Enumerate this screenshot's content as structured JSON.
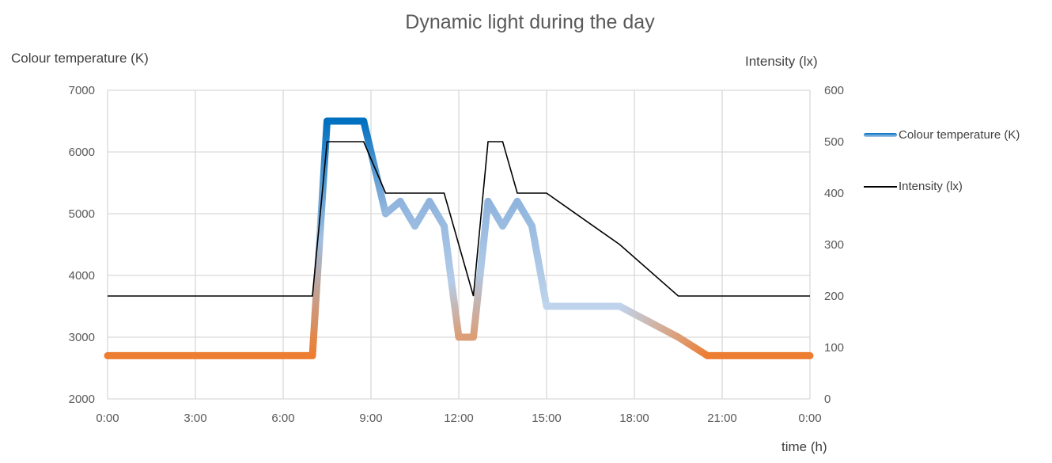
{
  "chart_data": {
    "type": "line",
    "title": "Dynamic light during the day",
    "xlabel": "time (h)",
    "ylabel_left": "Colour temperature (K)",
    "ylabel_right": "Intensity (lx)",
    "x_ticks": [
      "0:00",
      "3:00",
      "6:00",
      "9:00",
      "12:00",
      "15:00",
      "18:00",
      "21:00",
      "0:00"
    ],
    "xlim": [
      0,
      24
    ],
    "ylim_left": [
      2000,
      7000
    ],
    "ylim_right": [
      0,
      600
    ],
    "y_ticks_left": [
      "2000",
      "3000",
      "4000",
      "5000",
      "6000",
      "7000"
    ],
    "y_ticks_right": [
      "0",
      "100",
      "200",
      "300",
      "400",
      "500",
      "600"
    ],
    "grid": true,
    "legend_position": "right",
    "series": [
      {
        "name": "Colour temperature (K)",
        "axis": "left",
        "color_warm": "#ED7D31",
        "color_cool": "#0070C0",
        "x": [
          0,
          7,
          7.5,
          8.75,
          9.5,
          10,
          10.5,
          11,
          11.5,
          12,
          12.5,
          13,
          13.5,
          14,
          14.5,
          15,
          17.5,
          19.5,
          20.5,
          24
        ],
        "y": [
          2700,
          2700,
          6500,
          6500,
          5000,
          5200,
          4800,
          5200,
          4800,
          3000,
          3000,
          5200,
          4800,
          5200,
          4800,
          3500,
          3500,
          3000,
          2700,
          2700
        ]
      },
      {
        "name": "Intensity (lx)",
        "axis": "right",
        "color": "#000000",
        "x": [
          0,
          7,
          7.5,
          8.75,
          9.5,
          11.5,
          12.5,
          13,
          13.5,
          14,
          15,
          17.5,
          19.5,
          24
        ],
        "y": [
          200,
          200,
          500,
          500,
          400,
          400,
          200,
          500,
          500,
          400,
          400,
          300,
          200,
          200
        ]
      }
    ]
  }
}
